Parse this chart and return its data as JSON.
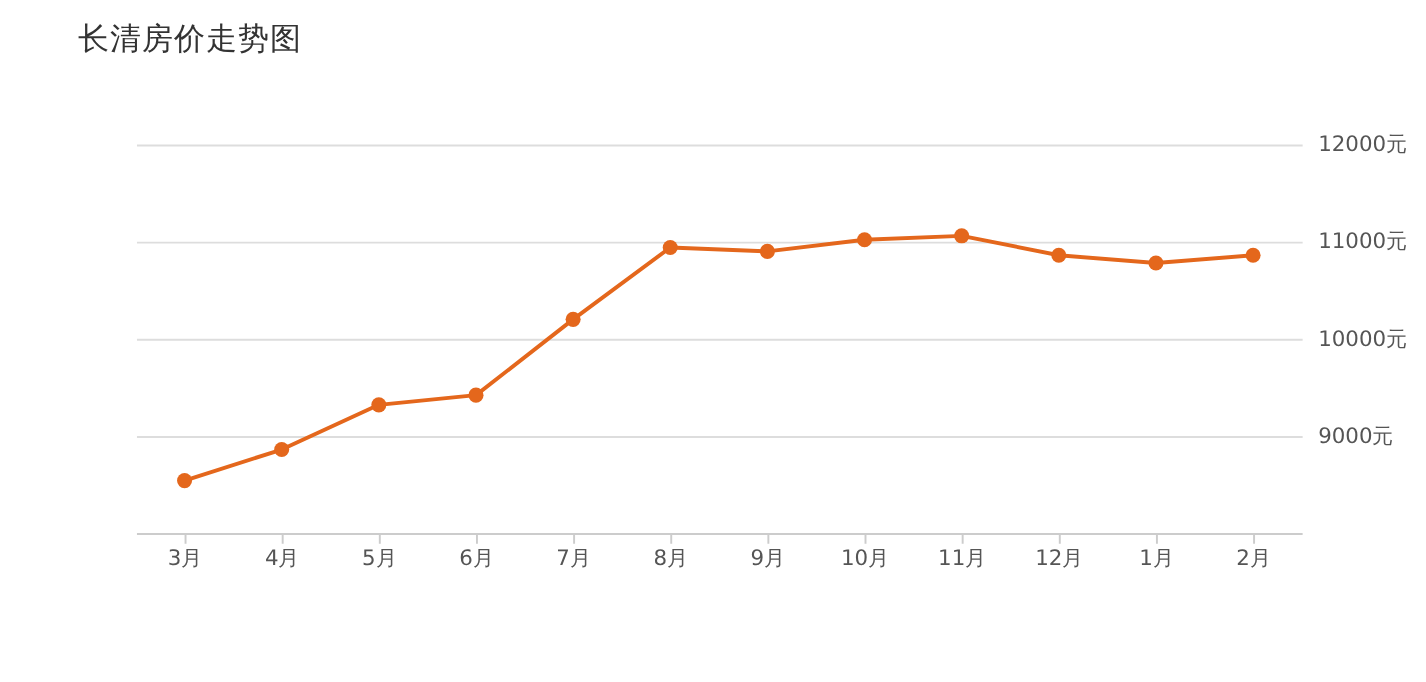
{
  "chart_data": {
    "type": "line",
    "title": "长清房价走势图",
    "categories": [
      "3月",
      "4月",
      "5月",
      "6月",
      "7月",
      "8月",
      "9月",
      "10月",
      "11月",
      "12月",
      "1月",
      "2月"
    ],
    "series": [
      {
        "color": "#e4671c",
        "values": [
          8540,
          8860,
          9320,
          9420,
          10200,
          10940,
          10900,
          11020,
          11060,
          10860,
          10780,
          10860
        ]
      }
    ],
    "ylim": [
      8000,
      12000
    ],
    "yticks": [
      {
        "value": 9000,
        "label": "9000元"
      },
      {
        "value": 10000,
        "label": "10000元"
      },
      {
        "value": 11000,
        "label": "11000元"
      },
      {
        "value": 12000,
        "label": "12000元"
      }
    ],
    "grid": "y",
    "marker": "circle",
    "line_style": "solid",
    "legend": false
  }
}
